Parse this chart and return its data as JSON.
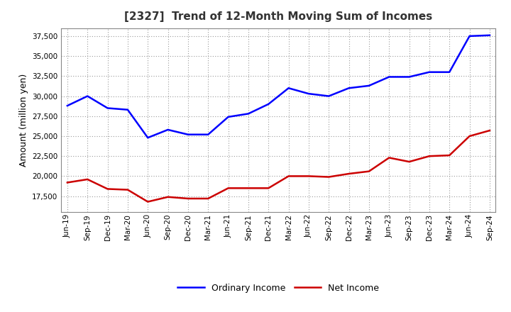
{
  "title": "[2327]  Trend of 12-Month Moving Sum of Incomes",
  "ylabel": "Amount (million yen)",
  "background_color": "#ffffff",
  "grid_color": "#999999",
  "title_fontsize": 11,
  "label_fontsize": 9,
  "tick_fontsize": 7.5,
  "x_labels": [
    "Jun-19",
    "Sep-19",
    "Dec-19",
    "Mar-20",
    "Jun-20",
    "Sep-20",
    "Dec-20",
    "Mar-21",
    "Jun-21",
    "Sep-21",
    "Dec-21",
    "Mar-22",
    "Jun-22",
    "Sep-22",
    "Dec-22",
    "Mar-23",
    "Jun-23",
    "Sep-23",
    "Dec-23",
    "Mar-24",
    "Jun-24",
    "Sep-24"
  ],
  "ordinary_income": [
    28800,
    30000,
    28500,
    28300,
    24800,
    25800,
    25200,
    25200,
    27400,
    27800,
    29000,
    31000,
    30300,
    30000,
    31000,
    31300,
    32400,
    32400,
    33000,
    33000,
    37500,
    37600
  ],
  "net_income": [
    19200,
    19600,
    18400,
    18300,
    16800,
    17400,
    17200,
    17200,
    18500,
    18500,
    18500,
    20000,
    20000,
    19900,
    20300,
    20600,
    22300,
    21800,
    22500,
    22600,
    25000,
    25700
  ],
  "ordinary_color": "#0000ff",
  "net_color": "#cc0000",
  "ylim_min": 15500,
  "ylim_max": 38500,
  "yticks": [
    17500,
    20000,
    22500,
    25000,
    27500,
    30000,
    32500,
    35000,
    37500
  ],
  "legend_labels": [
    "Ordinary Income",
    "Net Income"
  ]
}
